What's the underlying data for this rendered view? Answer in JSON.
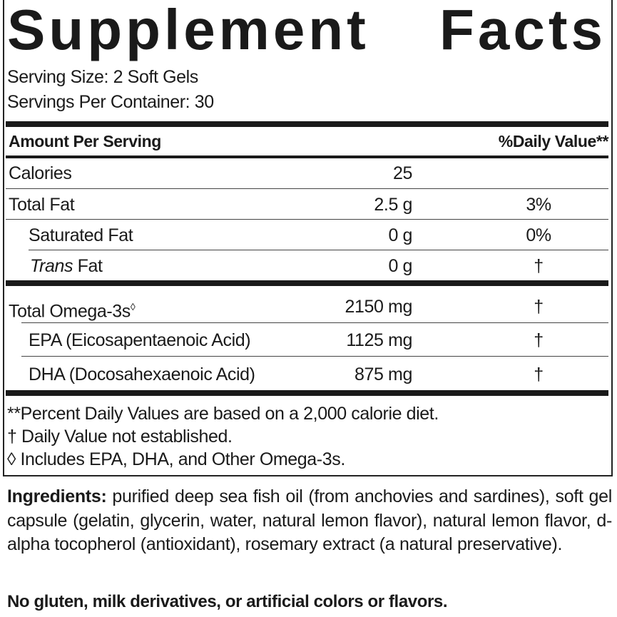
{
  "title": [
    "Supplement",
    "Facts"
  ],
  "serving_size": "Serving Size: 2 Soft Gels",
  "servings_per_container": "Servings Per Container: 30",
  "header": {
    "amount": "Amount Per Serving",
    "dv": "%Daily Value**"
  },
  "rows": [
    {
      "name": "Calories",
      "amount": "25",
      "dv": ""
    },
    {
      "name": "Total Fat",
      "amount": "2.5 g",
      "dv": "3%"
    },
    {
      "name": "Saturated Fat",
      "amount": "0 g",
      "dv": "0%"
    },
    {
      "name_italic": "Trans",
      "name": " Fat",
      "amount": "0 g",
      "dv": "†"
    },
    {
      "name": "Total Omega-3s",
      "sup": "◊",
      "amount": "2150 mg",
      "dv": "†"
    },
    {
      "name": "EPA (Eicosapentaenoic Acid)",
      "amount": "1125 mg",
      "dv": "†"
    },
    {
      "name": "DHA (Docosahexaenoic Acid)",
      "amount": "875 mg",
      "dv": "†"
    }
  ],
  "footnotes": [
    "**Percent Daily Values are based on a 2,000 calorie diet.",
    "† Daily Value not established.",
    "◊ Includes EPA, DHA, and Other Omega-3s."
  ],
  "ingredients": {
    "label": "Ingredients:",
    "text": " purified deep sea fish oil (from anchovies and sardines), soft gel capsule (gelatin, glycerin, water, natural lemon flavor), natural lemon flavor, d-alpha tocopherol (antioxidant), rosemary extract (a natural preservative)."
  },
  "free_from": "No gluten, milk derivatives, or artificial colors or flavors."
}
